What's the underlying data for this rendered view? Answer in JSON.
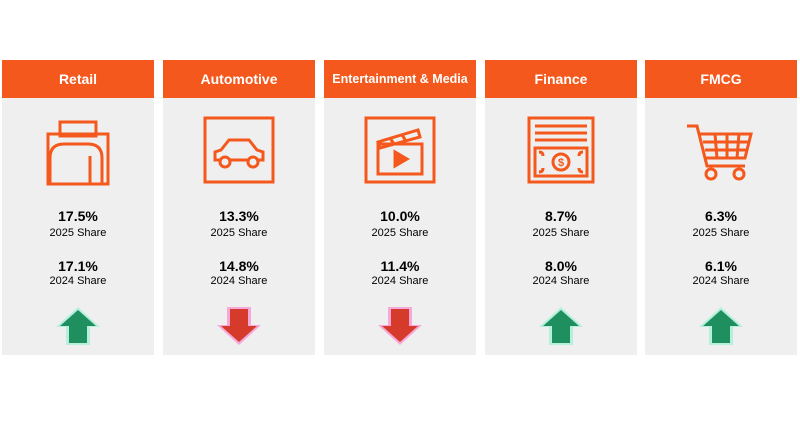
{
  "cards": [
    {
      "title": "Retail",
      "icon": "shopping-bag-icon",
      "share_2025": "17.5%",
      "label_2025": "2025 Share",
      "share_2024": "17.1%",
      "label_2024": "2024 Share",
      "trend": "up"
    },
    {
      "title": "Automotive",
      "icon": "car-icon",
      "share_2025": "13.3%",
      "label_2025": "2025 Share",
      "share_2024": "14.8%",
      "label_2024": "2024 Share",
      "trend": "down"
    },
    {
      "title": "Entertainment & Media",
      "icon": "video-clapperboard-icon",
      "share_2025": "10.0%",
      "label_2025": "2025 Share",
      "share_2024": "11.4%",
      "label_2024": "2024 Share",
      "trend": "down"
    },
    {
      "title": "Finance",
      "icon": "dollar-bill-icon",
      "share_2025": "8.7%",
      "label_2025": "2025 Share",
      "share_2024": "8.0%",
      "label_2024": "2024 Share",
      "trend": "up"
    },
    {
      "title": "FMCG",
      "icon": "shopping-cart-icon",
      "share_2025": "6.3%",
      "label_2025": "2025 Share",
      "share_2024": "6.1%",
      "label_2024": "2024 Share",
      "trend": "up"
    }
  ],
  "colors": {
    "accent": "#f4581c",
    "card_bg": "#efefef",
    "up": "#1f8f5f",
    "up_glow": "#b6f0dc",
    "down": "#d63a2a",
    "down_glow": "#f6a9d8"
  }
}
